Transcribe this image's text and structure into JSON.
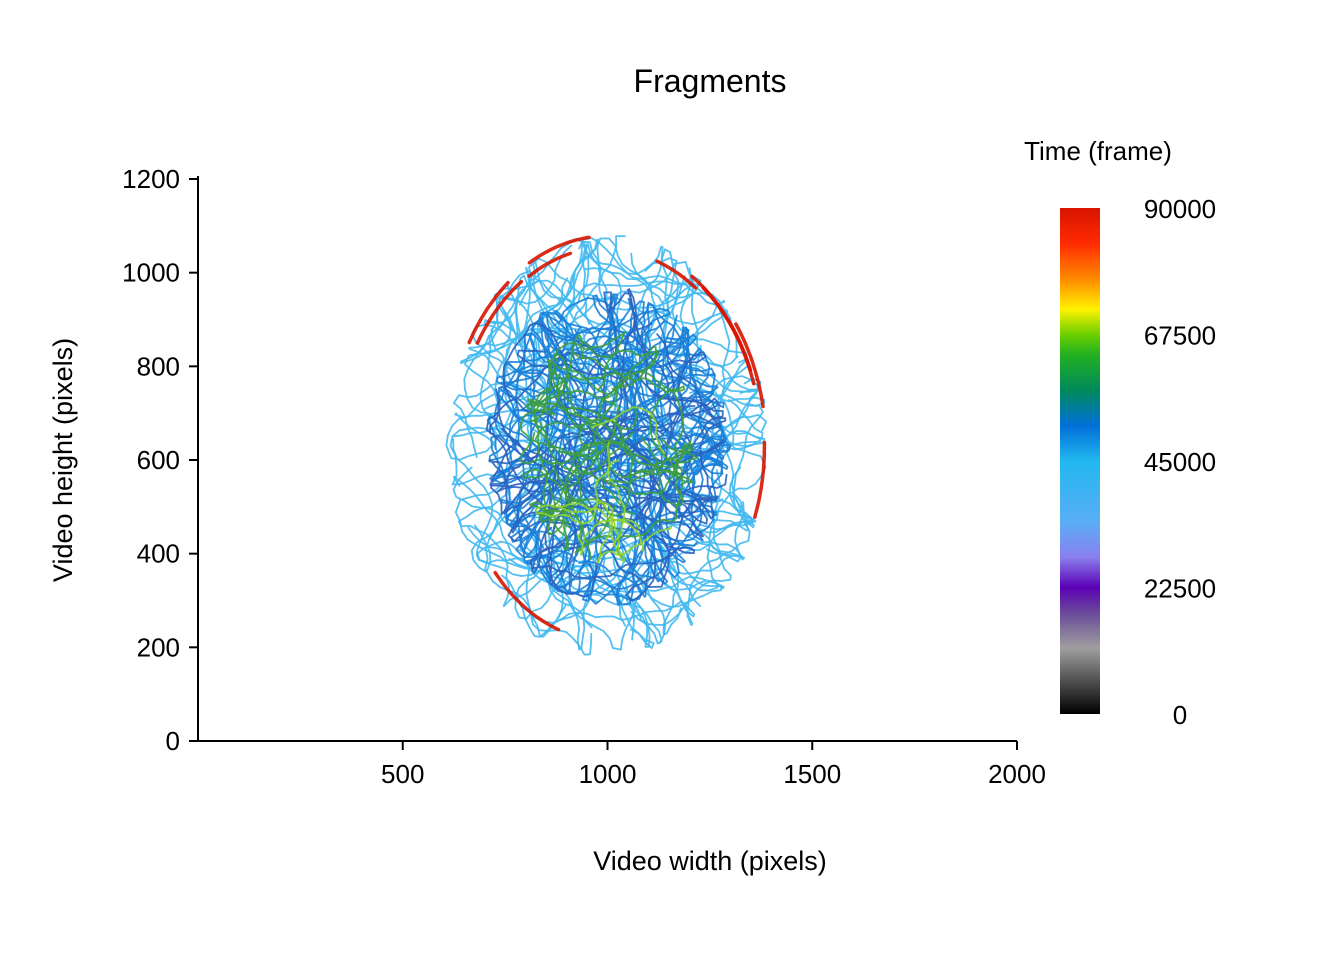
{
  "chart_data": {
    "type": "line",
    "title": "Fragments",
    "xlabel": "Video width (pixels)",
    "ylabel": "Video height (pixels)",
    "xlim": [
      0,
      2000
    ],
    "ylim": [
      0,
      1200
    ],
    "x_ticks": [
      500,
      1000,
      1500,
      2000
    ],
    "y_ticks": [
      0,
      200,
      400,
      600,
      800,
      1000,
      1200
    ],
    "grid": false,
    "legend": {
      "title": "Time (frame)",
      "placement": "right",
      "range": [
        0,
        90000
      ],
      "ticks": [
        0,
        22500,
        45000,
        67500,
        90000
      ],
      "colorscale": [
        [
          0,
          "#000000"
        ],
        [
          0.13,
          "#9e9e9e"
        ],
        [
          0.2,
          "#6a4a9a"
        ],
        [
          0.25,
          "#5b00b5"
        ],
        [
          0.31,
          "#8a80ee"
        ],
        [
          0.38,
          "#59aef5"
        ],
        [
          0.5,
          "#22b8f0"
        ],
        [
          0.57,
          "#0070d8"
        ],
        [
          0.64,
          "#008a5a"
        ],
        [
          0.71,
          "#22b020"
        ],
        [
          0.75,
          "#6ccf00"
        ],
        [
          0.8,
          "#fff200"
        ],
        [
          0.86,
          "#ff8a00"
        ],
        [
          0.93,
          "#ff2a00"
        ],
        [
          1,
          "#d81400"
        ]
      ]
    },
    "arena": {
      "center": [
        1000,
        630
      ],
      "radius_x": 400,
      "radius_y": 460
    },
    "series": [
      {
        "time_range": [
          36000,
          44000
        ],
        "color": "#43b9f0",
        "paths": 70,
        "spread": "full"
      },
      {
        "time_range": [
          45000,
          52000
        ],
        "color": "#1a80d8",
        "paths": 60,
        "spread": "inner"
      },
      {
        "time_range": [
          52000,
          58000
        ],
        "color": "#2a62c0",
        "paths": 25,
        "spread": "inner"
      },
      {
        "time_range": [
          58000,
          64000
        ],
        "color": "#3d9e3d",
        "paths": 30,
        "spread": "core"
      },
      {
        "time_range": [
          64000,
          70000
        ],
        "color": "#8ed12a",
        "paths": 6,
        "spread": "core"
      },
      {
        "time_range": [
          78000,
          90000
        ],
        "color": "#d81400",
        "paths": 10,
        "spread": "edge"
      }
    ]
  }
}
